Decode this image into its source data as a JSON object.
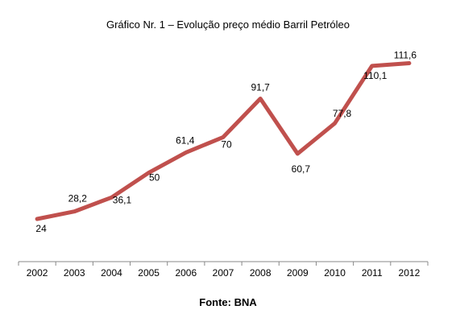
{
  "chart_data": {
    "type": "line",
    "title": "Gráfico Nr. 1 – Evolução preço médio Barril Petróleo",
    "source": "Fonte: BNA",
    "xlabel": "",
    "ylabel": "",
    "categories": [
      "2002",
      "2003",
      "2004",
      "2005",
      "2006",
      "2007",
      "2008",
      "2009",
      "2010",
      "2011",
      "2012"
    ],
    "series": [
      {
        "values": [
          24,
          28.2,
          36.1,
          50,
          61.4,
          70,
          91.7,
          60.7,
          77.8,
          110.1,
          111.6
        ],
        "labels": [
          "24",
          "28,2",
          "36,1",
          "50",
          "61,4",
          "70",
          "91,7",
          "60,7",
          "77,8",
          "110,1",
          "111,6"
        ],
        "color": "#C0504D"
      }
    ],
    "ylim": [
      0,
      120
    ],
    "grid": false,
    "legend": "none"
  }
}
